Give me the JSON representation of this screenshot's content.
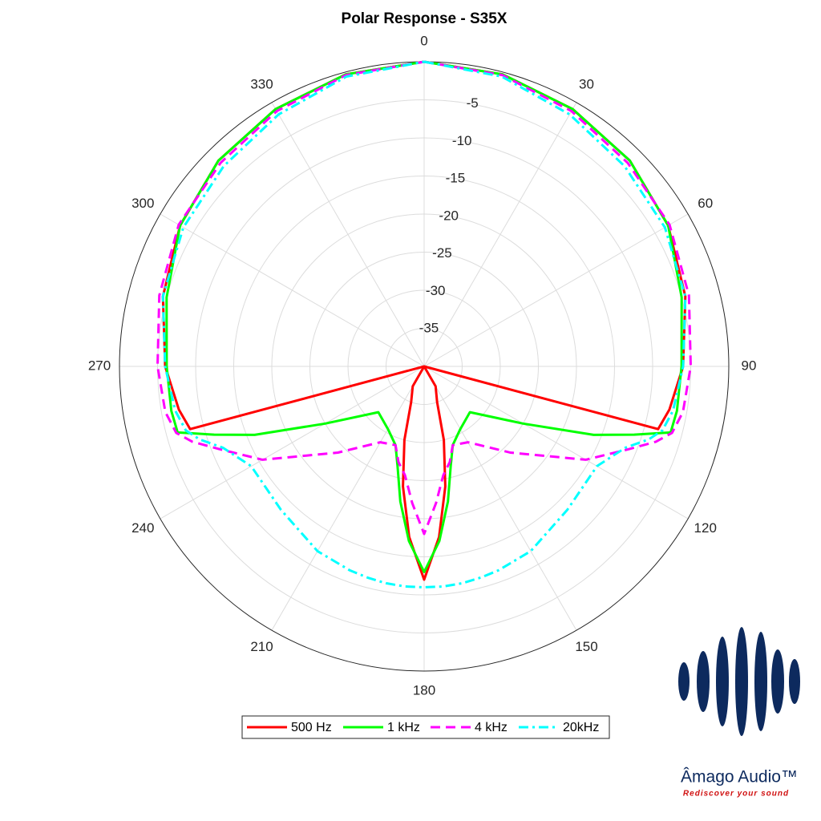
{
  "chart_data": {
    "type": "polar",
    "title": "Polar Response - S35X",
    "theta": [
      0,
      15,
      30,
      45,
      60,
      75,
      90,
      100,
      105,
      108,
      112,
      120,
      135,
      150,
      160,
      165,
      170,
      175,
      180,
      185,
      190,
      195,
      200,
      210,
      225,
      240,
      248,
      252,
      255,
      260,
      270,
      285,
      300,
      315,
      330,
      345
    ],
    "thetaticks": [
      0,
      30,
      60,
      90,
      120,
      150,
      180,
      210,
      240,
      270,
      300,
      330
    ],
    "rlim": [
      -40,
      0
    ],
    "rticks": [
      -35,
      -30,
      -25,
      -20,
      -15,
      -10,
      -5
    ],
    "grid": true,
    "series": [
      {
        "name": "500 Hz",
        "color": "#ff0000",
        "dash": "solid",
        "values": [
          0,
          -0.3,
          -1,
          -1.8,
          -3,
          -4.5,
          -6,
          -7.3,
          -8.2,
          -40,
          -40,
          -40,
          -40,
          -37,
          -35,
          -30,
          -24,
          -17.5,
          -12,
          -17.5,
          -24,
          -30,
          -35,
          -37,
          -40,
          -40,
          -40,
          -40,
          -8.2,
          -7.3,
          -6,
          -4.5,
          -3,
          -1.8,
          -1,
          -0.3
        ]
      },
      {
        "name": "1 kHz",
        "color": "#00ff00",
        "dash": "solid",
        "values": [
          0,
          -0.3,
          -1,
          -1.8,
          -3,
          -5,
          -6.2,
          -6.3,
          -6.5,
          -11,
          -16,
          -25,
          -31.5,
          -30.5,
          -29,
          -26.5,
          -22,
          -17,
          -13,
          -17,
          -22,
          -26.5,
          -29,
          -30.5,
          -31.5,
          -25,
          -16,
          -11,
          -6.5,
          -6.3,
          -6.2,
          -5,
          -3,
          -1.8,
          -1,
          -0.3
        ]
      },
      {
        "name": "4 kHz",
        "color": "#ff00ff",
        "dash": "dashed",
        "values": [
          0,
          -0.4,
          -1.3,
          -2.2,
          -2.8,
          -4,
          -5,
          -5.5,
          -6.3,
          -8,
          -11,
          -15.5,
          -24,
          -28.5,
          -29,
          -27,
          -25.5,
          -22,
          -18,
          -22,
          -25.5,
          -27,
          -29,
          -28.5,
          -24,
          -15.5,
          -11,
          -8,
          -6.3,
          -5.5,
          -5,
          -4,
          -2.8,
          -2.2,
          -1.3,
          -0.4
        ]
      },
      {
        "name": "20kHz",
        "color": "#00ffff",
        "dash": "dashdot",
        "values": [
          0,
          -0.6,
          -1.8,
          -2.8,
          -3.5,
          -4.5,
          -6,
          -6.8,
          -7.6,
          -9,
          -11.5,
          -13.8,
          -13.4,
          -12,
          -11.5,
          -11.3,
          -11.1,
          -11,
          -11,
          -11,
          -11.1,
          -11.3,
          -11.5,
          -12,
          -13.4,
          -13.8,
          -11.5,
          -9,
          -7.6,
          -6.8,
          -6,
          -4.5,
          -3.5,
          -2.8,
          -1.8,
          -0.6
        ]
      }
    ]
  },
  "logo": {
    "name": "Âmago Audio™",
    "tagline": "Rediscover your sound"
  }
}
